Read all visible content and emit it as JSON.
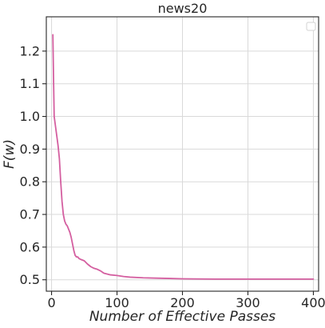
{
  "chart_data": {
    "type": "line",
    "title": "news20",
    "xlabel": "Number of Effective Passes",
    "ylabel": "F(w)",
    "xlim": [
      -8,
      408
    ],
    "ylim": [
      0.465,
      1.305
    ],
    "x_ticks": [
      0,
      100,
      200,
      300,
      400
    ],
    "y_ticks": [
      0.5,
      0.6,
      0.7,
      0.8,
      0.9,
      1.0,
      1.1,
      1.2
    ],
    "x_tick_labels": [
      "0",
      "100",
      "200",
      "300",
      "400"
    ],
    "y_tick_labels": [
      "0.5",
      "0.6",
      "0.7",
      "0.8",
      "0.9",
      "1.0",
      "1.1",
      "1.2"
    ],
    "grid": true,
    "legend": "top-right, empty",
    "series_color": "#d45fa0",
    "series": [
      {
        "x": [
          2,
          3,
          4,
          6,
          8,
          10,
          12,
          14,
          16,
          18,
          20,
          22,
          24,
          26,
          28,
          30,
          32,
          34,
          36,
          38,
          40,
          42,
          45,
          50,
          55,
          60,
          65,
          70,
          75,
          80,
          90,
          100,
          110,
          120,
          140,
          160,
          180,
          200,
          250,
          300,
          350,
          400
        ],
        "y": [
          1.25,
          1.12,
          1.0,
          0.97,
          0.94,
          0.91,
          0.87,
          0.8,
          0.74,
          0.7,
          0.68,
          0.67,
          0.665,
          0.655,
          0.645,
          0.63,
          0.61,
          0.59,
          0.575,
          0.57,
          0.57,
          0.565,
          0.562,
          0.558,
          0.548,
          0.54,
          0.535,
          0.532,
          0.527,
          0.52,
          0.515,
          0.513,
          0.51,
          0.508,
          0.506,
          0.505,
          0.504,
          0.503,
          0.502,
          0.502,
          0.502,
          0.502
        ]
      }
    ]
  }
}
